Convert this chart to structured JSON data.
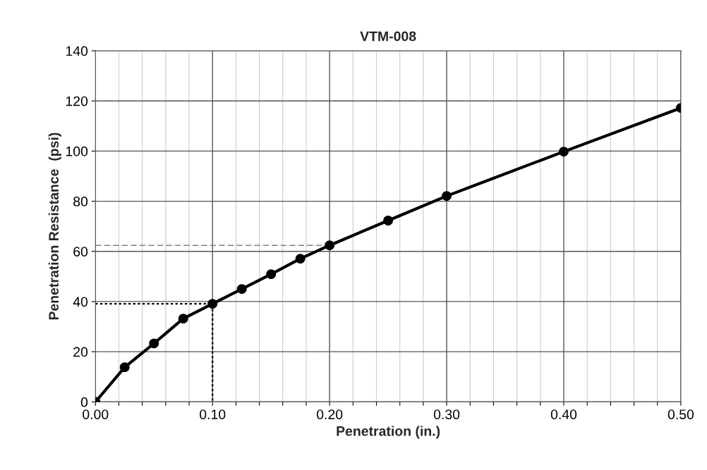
{
  "chart_data": {
    "type": "line",
    "title": "VTM-008",
    "xlabel": "Penetration (in.)",
    "ylabel": "Penetration Resistance  (psi)",
    "series": [
      {
        "color": "#000000",
        "marker": "circle",
        "line_style": "solid",
        "x": [
          0,
          0.025,
          0.05,
          0.075,
          0.1,
          0.125,
          0.15,
          0.175,
          0.2,
          0.25,
          0.3,
          0.4,
          0.5
        ],
        "values": [
          0,
          13.8,
          23.3,
          33.2,
          39.1,
          45,
          50.9,
          57.1,
          62.4,
          72.3,
          82.1,
          99.8,
          117.2
        ]
      },
      {
        "color": "#000000",
        "marker": "none",
        "line_style": "dotted",
        "x": [
          0,
          0.1,
          0.1
        ],
        "values": [
          39.1,
          39.1,
          0
        ]
      },
      {
        "color": "#808080",
        "marker": "none",
        "line_style": "dashed",
        "x": [
          0,
          0.2,
          0.2
        ],
        "values": [
          62.4,
          62.4,
          0
        ]
      }
    ],
    "xlim": [
      0,
      0.5
    ],
    "ylim": [
      0,
      140
    ],
    "xticks": [
      {
        "value": 0,
        "label": "0.00"
      },
      {
        "value": 0.02,
        "label": null
      },
      {
        "value": 0.04,
        "label": null
      },
      {
        "value": 0.06,
        "label": null
      },
      {
        "value": 0.08,
        "label": null
      },
      {
        "value": 0.1,
        "label": "0.10"
      },
      {
        "value": 0.12,
        "label": null
      },
      {
        "value": 0.14,
        "label": null
      },
      {
        "value": 0.16,
        "label": null
      },
      {
        "value": 0.18,
        "label": null
      },
      {
        "value": 0.2,
        "label": "0.20"
      },
      {
        "value": 0.22,
        "label": null
      },
      {
        "value": 0.24,
        "label": null
      },
      {
        "value": 0.26,
        "label": null
      },
      {
        "value": 0.28,
        "label": null
      },
      {
        "value": 0.3,
        "label": "0.30"
      },
      {
        "value": 0.32,
        "label": null
      },
      {
        "value": 0.34,
        "label": null
      },
      {
        "value": 0.36,
        "label": null
      },
      {
        "value": 0.38,
        "label": null
      },
      {
        "value": 0.4,
        "label": "0.40"
      },
      {
        "value": 0.42,
        "label": null
      },
      {
        "value": 0.44,
        "label": null
      },
      {
        "value": 0.46,
        "label": null
      },
      {
        "value": 0.48,
        "label": null
      },
      {
        "value": 0.5,
        "label": "0.50"
      }
    ],
    "yticks": [
      0,
      20,
      40,
      60,
      80,
      100,
      120,
      140
    ],
    "grid": true
  }
}
